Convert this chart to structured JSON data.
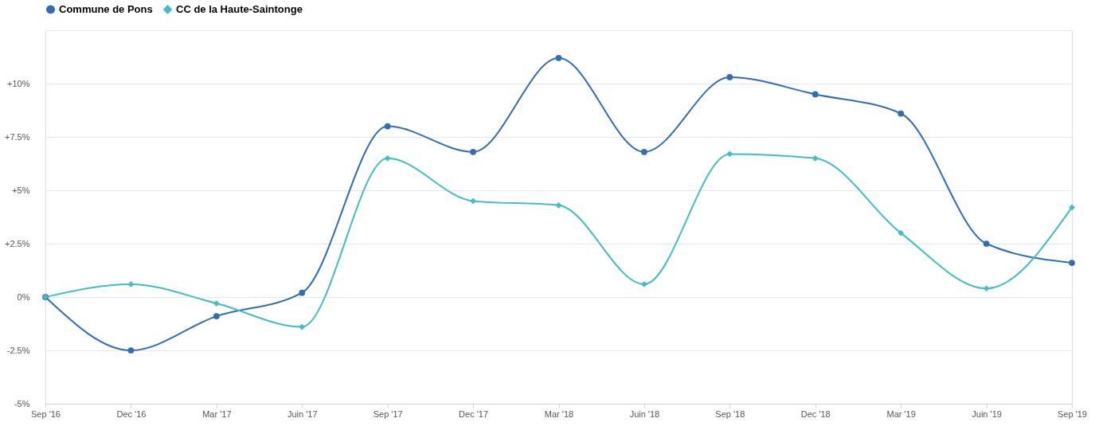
{
  "chart_data": {
    "type": "line",
    "categories": [
      "Sep '16",
      "Dec '16",
      "Mar '17",
      "Juin '17",
      "Sep '17",
      "Dec '17",
      "Mar '18",
      "Juin '18",
      "Sep '18",
      "Dec '18",
      "Mar '19",
      "Juin '19",
      "Sep '19"
    ],
    "series": [
      {
        "name": "Commune de Pons",
        "color": "#2e6db8",
        "marker": "circle",
        "values": [
          0,
          -2.5,
          -0.9,
          0.2,
          8.0,
          6.8,
          11.2,
          6.8,
          10.3,
          9.5,
          8.6,
          2.5,
          1.6
        ]
      },
      {
        "name": "CC de la Haute-Saintonge",
        "color": "#3dbfc9",
        "marker": "diamond",
        "values": [
          0,
          0.6,
          -0.3,
          -1.4,
          6.5,
          4.5,
          4.3,
          0.6,
          6.7,
          6.5,
          3.0,
          0.4,
          4.2
        ]
      }
    ],
    "ylim": [
      -5,
      12.5
    ],
    "yticks": [
      {
        "value": -5,
        "label": "-5%"
      },
      {
        "value": -2.5,
        "label": "-2.5%"
      },
      {
        "value": 0,
        "label": "0%"
      },
      {
        "value": 2.5,
        "label": "+2.5%"
      },
      {
        "value": 5,
        "label": "+5%"
      },
      {
        "value": 7.5,
        "label": "+7.5%"
      },
      {
        "value": 10,
        "label": "+10%"
      },
      {
        "value": 12.5,
        "label": null
      }
    ],
    "grid": "y",
    "legend": "top",
    "line_style": "solid"
  }
}
